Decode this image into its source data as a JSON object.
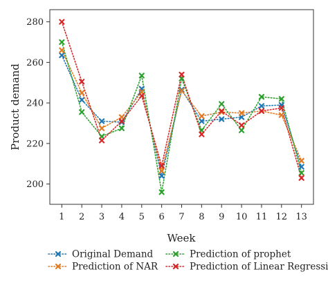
{
  "chart_data": {
    "type": "line",
    "xlabel": "Week",
    "ylabel": "Product demand",
    "x": [
      1,
      2,
      3,
      4,
      5,
      6,
      7,
      8,
      9,
      10,
      11,
      12,
      13
    ],
    "xlim": [
      0.4,
      13.6
    ],
    "ylim": [
      190,
      286
    ],
    "yticks": [
      200,
      220,
      240,
      260,
      280
    ],
    "grid": false,
    "legend_position": "bottom",
    "series": [
      {
        "name": "Original Demand",
        "color": "#1f77b4",
        "values": [
          263.5,
          241.5,
          231,
          230.5,
          247,
          204,
          246.5,
          231,
          232,
          233,
          238.5,
          239,
          208.5
        ]
      },
      {
        "name": "Prediction of NAR",
        "color": "#e07b24",
        "values": [
          266,
          245,
          227.5,
          233,
          245.5,
          206.5,
          246,
          233.5,
          235.5,
          235,
          236,
          234,
          211.5
        ]
      },
      {
        "name": "Prediction of prophet",
        "color": "#2ca02c",
        "values": [
          270,
          235.5,
          223.5,
          227.5,
          253.5,
          196,
          252,
          226.5,
          239.5,
          226.5,
          243,
          242,
          205.5
        ]
      },
      {
        "name": "Prediction of Linear Regression",
        "color": "#d62728",
        "values": [
          280,
          250.5,
          221.5,
          231,
          243.5,
          209,
          254,
          224.5,
          236,
          229,
          236,
          237.5,
          203
        ]
      }
    ]
  }
}
